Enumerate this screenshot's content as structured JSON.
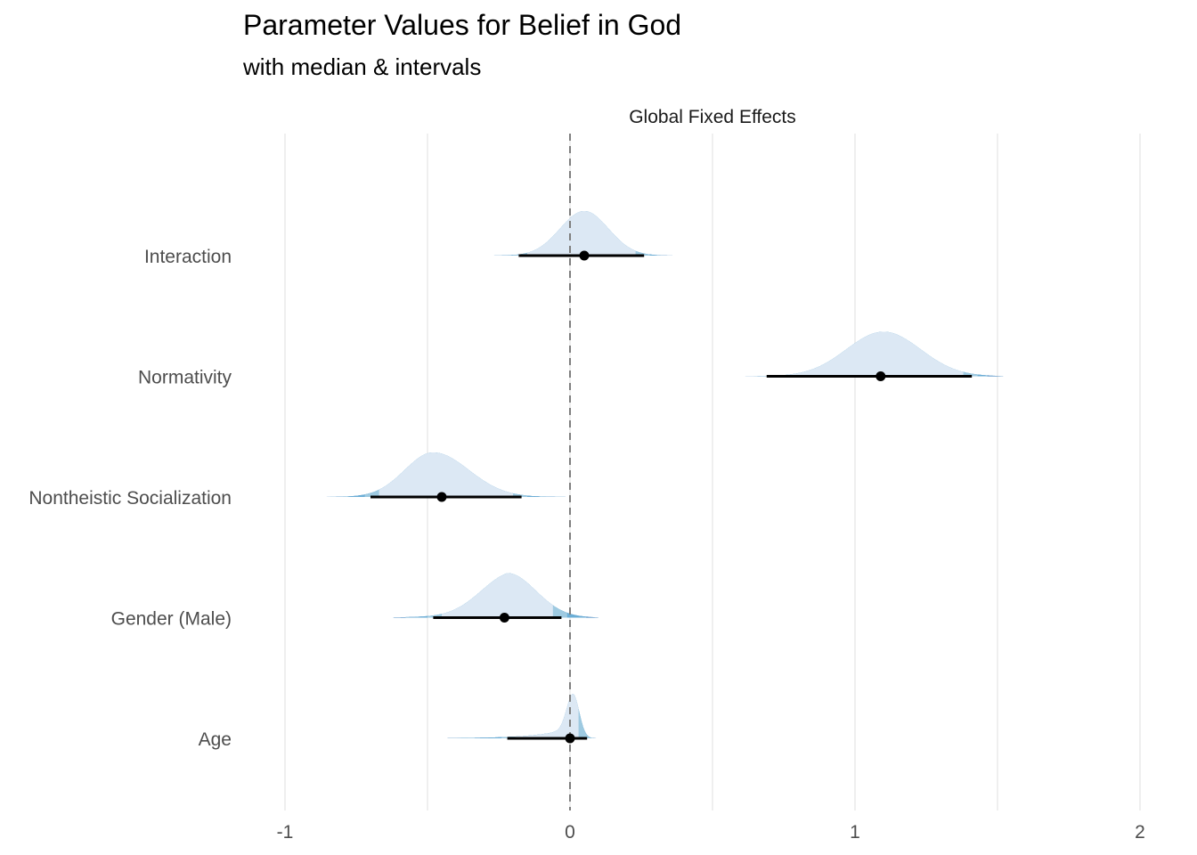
{
  "title": "Parameter Values for Belief in God",
  "subtitle": "with median & intervals",
  "chart_data": {
    "type": "halfeye",
    "title": "Parameter Values for Belief in God",
    "subtitle": "with median & intervals",
    "facet_label": "Global Fixed Effects",
    "xlabel": "",
    "ylabel": "",
    "xlim": [
      -1,
      2
    ],
    "x_ticks": [
      -1,
      0,
      1,
      2
    ],
    "reference_line": 0,
    "grid": true,
    "colors": {
      "density_inner": "#dce8f4",
      "interval_50": "#9ecae1",
      "interval_80": "#6baed6",
      "interval_95": "#4292c6",
      "interval_99": "#2171b5",
      "point": "#000000",
      "grid": "#ebebeb",
      "reference": "#7f7f7f"
    },
    "series": [
      {
        "name": "Interaction",
        "median": 0.05,
        "mode": 0.05,
        "sd": 0.085,
        "interval": [
          -0.18,
          0.26
        ],
        "range": [
          -0.35,
          0.36
        ],
        "skew": "none"
      },
      {
        "name": "Normativity",
        "median": 1.09,
        "mode": 1.1,
        "sd": 0.13,
        "interval": [
          0.69,
          1.41
        ],
        "range": [
          0.59,
          1.52
        ],
        "skew": "none"
      },
      {
        "name": "Nontheistic Socialization",
        "median": -0.45,
        "mode": -0.48,
        "sd": 0.1,
        "interval": [
          -0.7,
          -0.17
        ],
        "range": [
          -0.9,
          0.08
        ],
        "skew": "right"
      },
      {
        "name": "Gender (Male)",
        "median": -0.23,
        "mode": -0.22,
        "sd": 0.1,
        "interval": [
          -0.48,
          -0.03
        ],
        "range": [
          -0.62,
          0.1
        ],
        "skew": "left"
      },
      {
        "name": "Age",
        "median": 0.0,
        "mode": 0.01,
        "sd": 0.022,
        "interval": [
          -0.22,
          0.06
        ],
        "range": [
          -0.43,
          0.15
        ],
        "skew": "left"
      }
    ]
  }
}
